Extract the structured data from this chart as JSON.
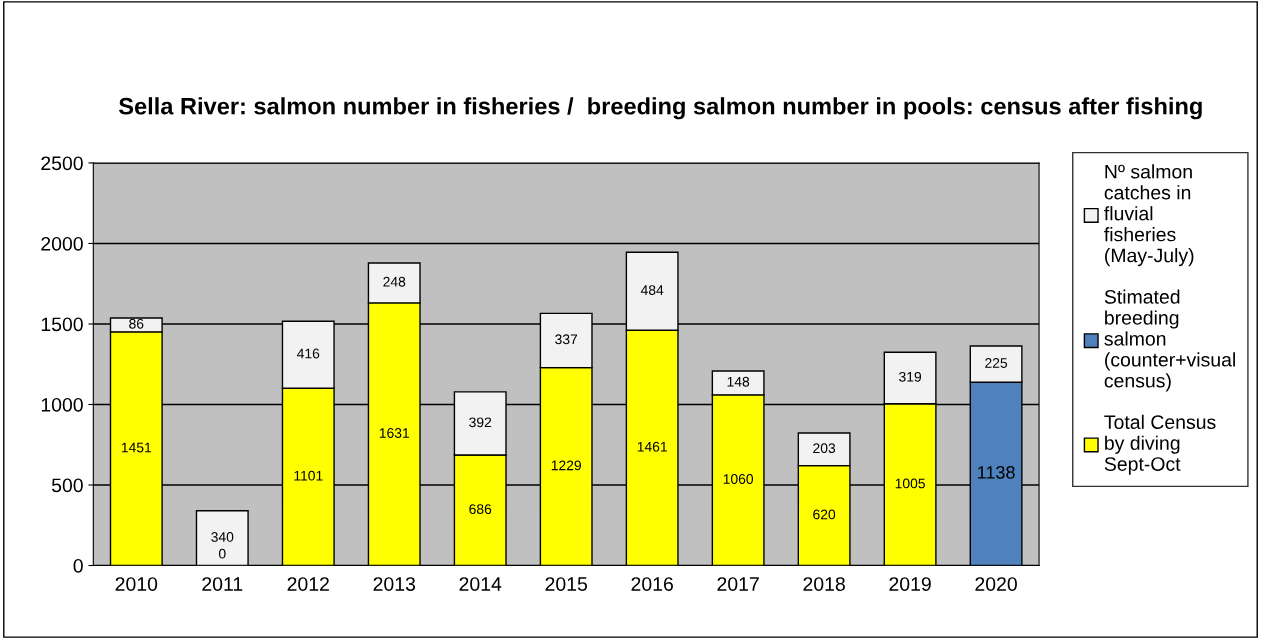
{
  "chart_data": {
    "type": "bar",
    "stacked": true,
    "title": "Sella River: salmon number in fisheries /  breeding salmon number in pools: census after fishing",
    "categories": [
      "2010",
      "2011",
      "2012",
      "2013",
      "2014",
      "2015",
      "2016",
      "2017",
      "2018",
      "2019",
      "2020"
    ],
    "series": [
      {
        "name": "Total Census by diving Sept-Oct",
        "color": "#ffff00",
        "values": [
          1451,
          0,
          1101,
          1631,
          686,
          1229,
          1461,
          1060,
          620,
          1005,
          null
        ]
      },
      {
        "name": "Stimated breeding salmon (counter+visual census)",
        "color": "#4f81bd",
        "values": [
          null,
          null,
          null,
          null,
          null,
          null,
          null,
          null,
          null,
          null,
          1138
        ]
      },
      {
        "name": "Nº salmon catches in fluvial fisheries (May-July)",
        "color": "#f2f2f2",
        "values": [
          86,
          340,
          416,
          248,
          392,
          337,
          484,
          148,
          203,
          319,
          225
        ]
      }
    ],
    "ylim": [
      0,
      2500
    ],
    "yticks": [
      0,
      500,
      1000,
      1500,
      2000,
      2500
    ],
    "grid": "y",
    "legend": "right",
    "data_labels": true
  }
}
